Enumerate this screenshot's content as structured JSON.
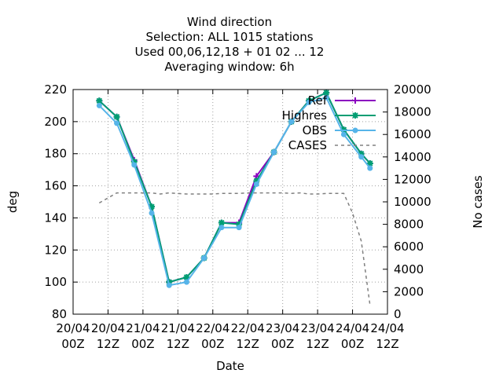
{
  "chart_data": {
    "type": "line",
    "title_lines": [
      "Wind direction",
      "Selection: ALL    1015 stations",
      "Used  00,06,12,18 + 01 02 ... 12",
      "Averaging window:  6h"
    ],
    "xlabel": "Date",
    "ylabel": "deg",
    "y2label": "No cases",
    "xlim": [
      0,
      96
    ],
    "ylim": [
      80,
      220
    ],
    "y2lim": [
      0,
      20000
    ],
    "x_ticks": [
      {
        "x": 0,
        "l1": "20/04",
        "l2": "00Z"
      },
      {
        "x": 12,
        "l1": "20/04",
        "l2": "12Z"
      },
      {
        "x": 24,
        "l1": "21/04",
        "l2": "00Z"
      },
      {
        "x": 36,
        "l1": "21/04",
        "l2": "12Z"
      },
      {
        "x": 48,
        "l1": "22/04",
        "l2": "00Z"
      },
      {
        "x": 60,
        "l1": "22/04",
        "l2": "12Z"
      },
      {
        "x": 72,
        "l1": "23/04",
        "l2": "00Z"
      },
      {
        "x": 84,
        "l1": "23/04",
        "l2": "12Z"
      },
      {
        "x": 96,
        "l1": "24/04",
        "l2": "00Z"
      },
      {
        "x": 108,
        "l1": "24/04",
        "l2": "12Z"
      }
    ],
    "y_ticks": [
      80,
      100,
      120,
      140,
      160,
      180,
      200,
      220
    ],
    "y2_ticks": [
      0,
      2000,
      4000,
      6000,
      8000,
      10000,
      12000,
      14000,
      16000,
      18000,
      20000
    ],
    "grid": true,
    "legend_position": "top-right",
    "x": [
      9,
      15,
      21,
      27,
      33,
      39,
      45,
      51,
      57,
      63,
      69,
      75,
      81,
      87,
      93,
      99,
      102
    ],
    "series": [
      {
        "name": "Ref",
        "color": "#8b00c0",
        "marker": "plus",
        "values": [
          213,
          203,
          176,
          147,
          100,
          103,
          115,
          137,
          137,
          166,
          181,
          200,
          213,
          218,
          195,
          180,
          174
        ]
      },
      {
        "name": "Highres",
        "color": "#009e73",
        "marker": "star",
        "values": [
          213,
          203,
          175,
          147,
          100,
          103,
          115,
          137,
          136,
          163,
          181,
          200,
          213,
          218,
          195,
          180,
          174
        ]
      },
      {
        "name": "OBS",
        "color": "#56b4e9",
        "marker": "circle",
        "values": [
          210,
          199,
          173,
          143,
          98,
          100,
          115,
          134,
          134,
          161,
          181,
          200,
          212,
          215,
          192,
          178,
          171
        ]
      },
      {
        "name": "CASES",
        "color": "#808080",
        "marker": "none",
        "dashed": true,
        "axis": "y2",
        "x": [
          9,
          15,
          18,
          21,
          24,
          27,
          30,
          33,
          36,
          39,
          42,
          45,
          48,
          51,
          54,
          57,
          60,
          63,
          66,
          69,
          72,
          75,
          78,
          81,
          84,
          87,
          90,
          93,
          96,
          99,
          102
        ],
        "values": [
          9900,
          10800,
          10800,
          10800,
          10800,
          10800,
          10700,
          10800,
          10750,
          10700,
          10700,
          10700,
          10700,
          10750,
          10750,
          10750,
          10800,
          10800,
          10800,
          10800,
          10800,
          10750,
          10800,
          10700,
          10700,
          10750,
          10750,
          10750,
          9000,
          6500,
          800
        ]
      }
    ]
  }
}
